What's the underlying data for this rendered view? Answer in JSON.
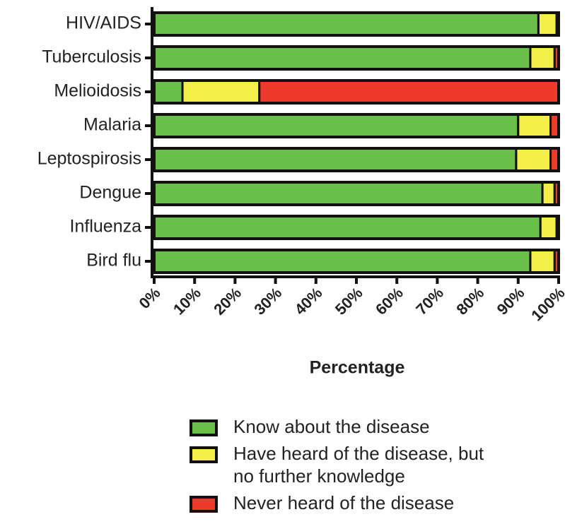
{
  "chart_data": {
    "type": "stacked_bar_horizontal",
    "categories": [
      "HIV/AIDS",
      "Tuberculosis",
      "Melioidosis",
      "Malaria",
      "Leptospirosis",
      "Dengue",
      "Influenza",
      "Bird flu"
    ],
    "series": [
      {
        "name": "Know about the disease",
        "color": "#6abf4b",
        "values": [
          95,
          93,
          7,
          90,
          89.5,
          96,
          95.5,
          93
        ]
      },
      {
        "name": "Have heard of the disease, but no further knowledge",
        "color": "#f2ef4a",
        "values": [
          4.5,
          6,
          19,
          8,
          8.5,
          3,
          4,
          6
        ]
      },
      {
        "name": "Never heard of the disease",
        "color": "#ee3a2c",
        "values": [
          0.5,
          1,
          74,
          2,
          2,
          1,
          0.5,
          1
        ]
      }
    ],
    "xlabel": "Percentage",
    "xlim": [
      0,
      100
    ],
    "xticks": [
      {
        "value": 0,
        "label": "0%"
      },
      {
        "value": 10,
        "label": "10%"
      },
      {
        "value": 20,
        "label": "20%"
      },
      {
        "value": 30,
        "label": "30%"
      },
      {
        "value": 40,
        "label": "40%"
      },
      {
        "value": 50,
        "label": "50%"
      },
      {
        "value": 60,
        "label": "60%"
      },
      {
        "value": 70,
        "label": "70%"
      },
      {
        "value": 80,
        "label": "80%"
      },
      {
        "value": 90,
        "label": "90%"
      },
      {
        "value": 100,
        "label": "100%"
      }
    ],
    "legend": "bottom"
  }
}
